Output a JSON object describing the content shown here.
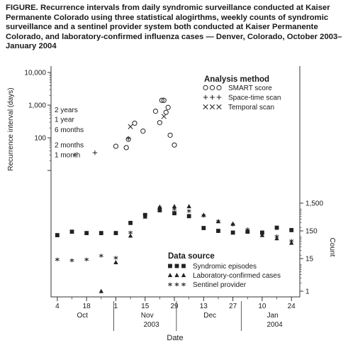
{
  "caption": "FIGURE. Recurrence intervals from daily syndromic surveillance conducted at Kaiser Permanente Colorado using three statistical alogirthms, weekly counts of syndromic surveillance and a sentinel provider system both conducted at Kaiser Permanente Colorado, and laboratory-confirmed influenza cases — Denver, Colorado, October 2003–January 2004",
  "chart_data": {
    "type": "scatter",
    "title": "",
    "xlabel": "Date",
    "x_ticks": [
      "4",
      "18",
      "1",
      "15",
      "29",
      "13",
      "27",
      "10",
      "24"
    ],
    "x_minor_ticks": [
      "11",
      "25",
      "8",
      "22",
      "6",
      "20",
      "3",
      "17"
    ],
    "x_months": [
      "Oct",
      "Nov",
      "Dec",
      "Jan"
    ],
    "x_years": [
      "2003",
      "2004"
    ],
    "xlim": [
      "2003-10-01",
      "2004-01-28"
    ],
    "upper_panel": {
      "ylabel": "Recurrence interval (days)",
      "yscale": "log",
      "ylim": [
        1,
        10000
      ],
      "y_tick_labels": [
        "10,000",
        "1,000",
        "100"
      ],
      "reference_labels": [
        "2 years",
        "1 year",
        "6 months",
        "2 months",
        "1 month"
      ],
      "reference_values": [
        730,
        365,
        180,
        60,
        30
      ],
      "legend_title": "Analysis method",
      "legend_position": "top-right",
      "series": [
        {
          "name": "SMART score",
          "marker": "circle",
          "x": [
            "2003-11-01",
            "2003-11-06",
            "2003-11-07",
            "2003-11-10",
            "2003-11-14",
            "2003-11-20",
            "2003-11-22",
            "2003-11-23",
            "2003-11-24",
            "2003-11-25",
            "2003-11-26",
            "2003-11-27",
            "2003-11-29"
          ],
          "y": [
            55,
            50,
            90,
            280,
            160,
            650,
            290,
            1400,
            1400,
            600,
            850,
            120,
            60
          ]
        },
        {
          "name": "Space-time scan",
          "marker": "plus",
          "x": [
            "2003-10-22",
            "2003-11-07"
          ],
          "y": [
            35,
            95
          ]
        },
        {
          "name": "Temporal scan",
          "marker": "x",
          "x": [
            "2003-11-08",
            "2003-11-24"
          ],
          "y": [
            220,
            450
          ]
        }
      ]
    },
    "lower_panel": {
      "ylabel": "Count",
      "yscale": "log",
      "ylim": [
        1,
        1500
      ],
      "y_tick_labels": [
        "1,500",
        "150",
        "15",
        "1"
      ],
      "legend_title": "Data source",
      "legend_position": "bottom-center",
      "series": [
        {
          "name": "Syndromic episodes",
          "marker": "square",
          "x": [
            "2003-10-04",
            "2003-10-11",
            "2003-10-18",
            "2003-10-25",
            "2003-11-01",
            "2003-11-08",
            "2003-11-15",
            "2003-11-22",
            "2003-11-29",
            "2003-12-06",
            "2003-12-13",
            "2003-12-20",
            "2003-12-27",
            "2004-01-03",
            "2004-01-10",
            "2004-01-17",
            "2004-01-24"
          ],
          "y": [
            105,
            140,
            125,
            125,
            125,
            290,
            560,
            830,
            650,
            510,
            190,
            150,
            130,
            140,
            130,
            195,
            160
          ]
        },
        {
          "name": "Laboratory-confirmed cases",
          "marker": "triangle",
          "x": [
            "2003-10-25",
            "2003-11-01",
            "2003-11-08",
            "2003-11-15",
            "2003-11-22",
            "2003-11-29",
            "2003-12-06",
            "2003-12-13",
            "2003-12-20",
            "2003-12-27",
            "2004-01-03",
            "2004-01-10",
            "2004-01-17",
            "2004-01-24"
          ],
          "y": [
            1,
            11,
            100,
            485,
            1100,
            1150,
            1150,
            560,
            330,
            270,
            150,
            105,
            80,
            55
          ]
        },
        {
          "name": "Sentinel provider",
          "marker": "asterisk",
          "x": [
            "2003-10-04",
            "2003-10-11",
            "2003-10-18",
            "2003-10-25",
            "2003-11-01",
            "2003-11-08",
            "2003-11-15",
            "2003-11-22",
            "2003-11-29",
            "2003-12-06",
            "2003-12-13",
            "2003-12-20",
            "2003-12-27",
            "2004-01-03",
            "2004-01-10",
            "2004-01-17",
            "2004-01-24"
          ],
          "y": [
            14,
            13,
            14,
            19,
            16,
            130,
            545,
            1030,
            920,
            780,
            530,
            335,
            250,
            170,
            120,
            95,
            65
          ]
        }
      ]
    }
  }
}
